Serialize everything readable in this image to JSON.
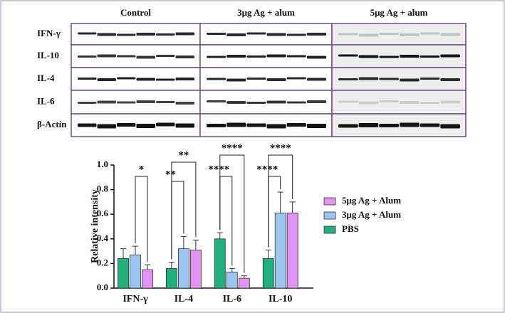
{
  "blot": {
    "columns": [
      "Control",
      "3μg Ag + alum",
      "5μg Ag + alum"
    ],
    "rows": [
      "IFN-γ",
      "IL-10",
      "IL-4",
      "IL-6",
      "β-Actin"
    ]
  },
  "chart_data": {
    "type": "bar",
    "y_label": "Relative intensity",
    "categories": [
      "IFN-γ",
      "IL-4",
      "IL-6",
      "IL-10"
    ],
    "series": [
      {
        "name": "PBS",
        "color": "#1fb07c",
        "values": [
          0.24,
          0.16,
          0.4,
          0.24
        ],
        "errors": [
          0.08,
          0.05,
          0.05,
          0.07
        ]
      },
      {
        "name": "3μg Ag + Alum",
        "color": "#9cc6f2",
        "values": [
          0.27,
          0.32,
          0.13,
          0.61
        ],
        "errors": [
          0.07,
          0.1,
          0.03,
          0.17
        ]
      },
      {
        "name": "5μg Ag + Alum",
        "color": "#e294f2",
        "values": [
          0.15,
          0.31,
          0.08,
          0.61
        ],
        "errors": [
          0.04,
          0.08,
          0.02,
          0.09
        ]
      }
    ],
    "ylim": [
      0,
      1.0
    ],
    "yticks": [
      {
        "value": 0,
        "label": "0.0"
      },
      0.2,
      0.4,
      0.6,
      0.8,
      {
        "value": 1.0,
        "label": "1.0"
      }
    ],
    "annotations": [
      "*",
      "**",
      "**",
      "****",
      "****",
      "****",
      "****"
    ]
  }
}
